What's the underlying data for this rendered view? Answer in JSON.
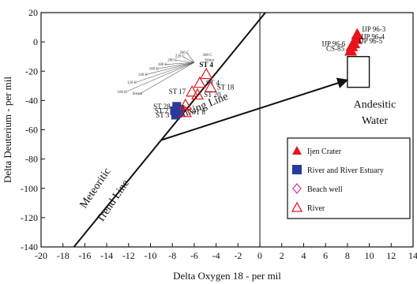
{
  "chart_data": {
    "type": "scatter",
    "xlabel": "Delta Oxygen 18 - per mil",
    "ylabel": "Delta Deuterium - per mil",
    "xlim": [
      -20,
      14
    ],
    "ylim": [
      -140,
      20
    ],
    "x_ticks": [
      -20,
      -18,
      -16,
      -14,
      -12,
      -10,
      -8,
      -6,
      -4,
      -2,
      0,
      2,
      4,
      6,
      8,
      10,
      12,
      14
    ],
    "y_ticks": [
      20,
      0,
      -20,
      -40,
      -60,
      -80,
      -100,
      -120,
      -140
    ],
    "grid": false,
    "legend": {
      "placement": "right",
      "entries": [
        {
          "label": "Ijen Crater",
          "marker": "filled-triangle",
          "color": "#e8141b"
        },
        {
          "label": "River and River Estuary",
          "marker": "filled-square",
          "color": "#2a3a9a"
        },
        {
          "label": "Beach well",
          "marker": "open-diamond",
          "color": "#d63aa8"
        },
        {
          "label": "River",
          "marker": "open-triangle",
          "color": "#e8141b"
        }
      ]
    },
    "lines": [
      {
        "label": "Meteoritic Trend Line",
        "points": [
          [
            -17,
            -140
          ],
          [
            0.5,
            20
          ]
        ]
      },
      {
        "label": "Mixing Line",
        "points": [
          [
            -9,
            -67
          ],
          [
            8,
            -26
          ]
        ],
        "arrow": true
      }
    ],
    "annotations": [
      {
        "text": "Meteoritic",
        "x": -14.8,
        "y": -101
      },
      {
        "text": "Trend Line",
        "x": -13.2,
        "y": -110
      },
      {
        "text": "Mixing Line",
        "x": -5.2,
        "y": -46
      },
      {
        "text": "Andesitic",
        "x": 10.5,
        "y": -45
      },
      {
        "text": "Water",
        "x": 10.5,
        "y": -56
      }
    ],
    "andesitic_box": {
      "x": [
        8,
        10
      ],
      "y": [
        -31,
        -10
      ]
    },
    "steam_curve": {
      "anchor": [
        -6,
        -14
      ],
      "labels": [
        {
          "text": "300 C",
          "x": -4.8,
          "y": -9.5
        },
        {
          "text": "Water",
          "x": -4.6,
          "y": -13
        },
        {
          "text": "260 C",
          "x": -6.9,
          "y": -8
        },
        {
          "text": "220 C",
          "x": -7.3,
          "y": -10.5
        },
        {
          "text": "200 C",
          "x": -8.0,
          "y": -13
        },
        {
          "text": "180 C",
          "x": -8.9,
          "y": -16
        },
        {
          "text": "160 C",
          "x": -9.7,
          "y": -19
        },
        {
          "text": "140 C",
          "x": -10.7,
          "y": -23
        },
        {
          "text": "120 C",
          "x": -11.7,
          "y": -28.5
        },
        {
          "text": "100 C",
          "x": -12.6,
          "y": -35
        },
        {
          "text": "Steam",
          "x": -11.2,
          "y": -36
        }
      ]
    },
    "series": [
      {
        "name": "Ijen Crater",
        "points": [
          {
            "x": 8.9,
            "y": 5,
            "label": "IJP 96-3"
          },
          {
            "x": 8.8,
            "y": 2,
            "label": "IJP 96-4"
          },
          {
            "x": 8.6,
            "y": -1,
            "label": "IJP 96-5"
          },
          {
            "x": 8.4,
            "y": -3,
            "label": "IJP 96-6"
          },
          {
            "x": 8.3,
            "y": -6,
            "label": "CS-85"
          }
        ]
      },
      {
        "name": "River and River Estuary",
        "points": [
          {
            "x": -7.6,
            "y": -44,
            "label": "ST 28"
          },
          {
            "x": -7.8,
            "y": -47,
            "label": "ST 2"
          },
          {
            "x": -7.7,
            "y": -50,
            "label": "ST 3"
          },
          {
            "x": -7.4,
            "y": -48,
            "label": ""
          },
          {
            "x": -7.3,
            "y": -46,
            "label": ""
          }
        ]
      },
      {
        "name": "River",
        "points": [
          {
            "x": -4.9,
            "y": -22,
            "label": "ST 4"
          },
          {
            "x": -5.5,
            "y": -28,
            "label": "ST 4"
          },
          {
            "x": -4.5,
            "y": -31,
            "label": "ST 18"
          },
          {
            "x": -6.2,
            "y": -34,
            "label": "ST 17"
          },
          {
            "x": -5.7,
            "y": -36,
            "label": "ST 20"
          },
          {
            "x": -6.8,
            "y": -43,
            "label": ""
          },
          {
            "x": -6.8,
            "y": -48,
            "label": "ST 8"
          }
        ]
      }
    ]
  }
}
